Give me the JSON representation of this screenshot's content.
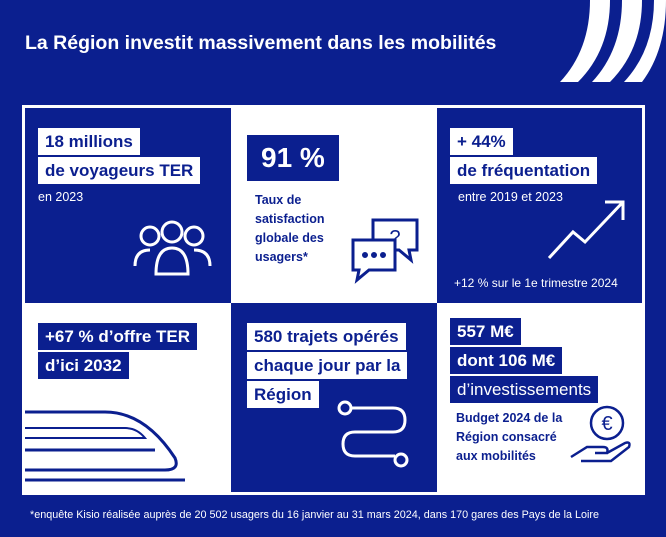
{
  "header": {
    "title": "La Région investit massivement dans les mobilités"
  },
  "cells": [
    {
      "highlight": [
        "18 millions",
        "de voyageurs TER"
      ],
      "text": [
        "en 2023"
      ]
    },
    {
      "highlight": [
        "91 %"
      ],
      "text": [
        "Taux de",
        "satisfaction",
        "globale des",
        "usagers*"
      ]
    },
    {
      "highlight": [
        "+ 44%",
        "de fréquentation"
      ],
      "text": [
        "entre 2019 et 2023"
      ],
      "note": "+12 % sur le 1e trimestre 2024"
    },
    {
      "highlight": [
        "+67 % d’offre TER",
        "d’ici 2032"
      ]
    },
    {
      "highlight": [
        "580 trajets opérés",
        "chaque jour par la",
        "Région"
      ]
    },
    {
      "highlight": [
        "557 M€",
        "dont 106 M€",
        "d’investissements"
      ],
      "text": [
        "Budget 2024 de la",
        "Région consacré",
        "aux mobilités"
      ]
    }
  ],
  "footnote": "*enquête Kisio réalisée auprès de 20 502 usagers du 16 janvier au 31 mars 2024, dans 170 gares des Pays de la Loire"
}
